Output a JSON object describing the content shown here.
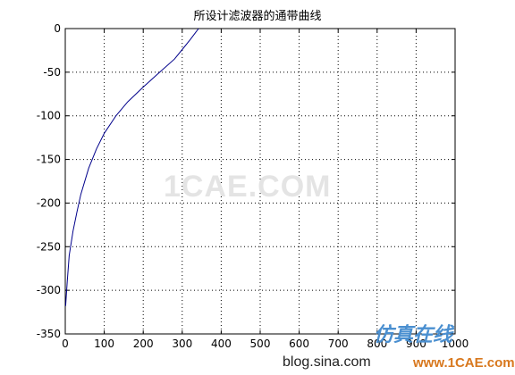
{
  "chart_data": {
    "type": "line",
    "title": "所设计滤波器的通带曲线",
    "xlabel": "",
    "ylabel": "",
    "xlim": [
      0,
      1000
    ],
    "ylim": [
      -350,
      0
    ],
    "xticks": [
      0,
      100,
      200,
      300,
      400,
      500,
      600,
      700,
      800,
      900,
      1000
    ],
    "yticks": [
      0,
      -50,
      -100,
      -150,
      -200,
      -250,
      -300,
      -350
    ],
    "grid": true,
    "grid_style": "dotted",
    "series": [
      {
        "color": "#00008b",
        "x": [
          1,
          5,
          10,
          20,
          30,
          40,
          60,
          80,
          100,
          130,
          160,
          200,
          240,
          280,
          300,
          320,
          335,
          342
        ],
        "y": [
          -318,
          -290,
          -260,
          -232,
          -210,
          -190,
          -160,
          -138,
          -120,
          -100,
          -84,
          -67,
          -51,
          -35,
          -24,
          -13,
          -4,
          0
        ]
      }
    ]
  },
  "watermarks": {
    "center": "1CAE.COM",
    "site_name": "仿真在线",
    "site_url": "www.1CAE.com",
    "blog": "blog.sina.com"
  }
}
